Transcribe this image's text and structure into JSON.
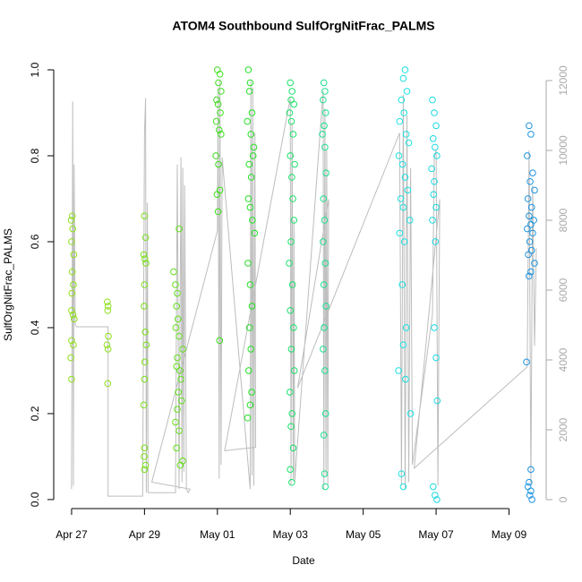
{
  "chart_data": {
    "type": "scatter",
    "title": "ATOM4 Southbound SulfOrgNitFrac_PALMS",
    "xlabel": "Date",
    "ylabel": "SulfOrgNitFrac_PALMS",
    "xlim": [
      -0.49,
      13.02
    ],
    "xticks": [
      {
        "value": 0,
        "label": "Apr 27"
      },
      {
        "value": 2,
        "label": "Apr 29"
      },
      {
        "value": 4,
        "label": "May 01"
      },
      {
        "value": 6,
        "label": "May 03"
      },
      {
        "value": 8,
        "label": "May 05"
      },
      {
        "value": 10,
        "label": "May 07"
      },
      {
        "value": 12,
        "label": "May 09"
      }
    ],
    "ylim": [
      -0.021,
      1.0375
    ],
    "yticks": [
      {
        "value": 0,
        "label": "0.0"
      },
      0.2,
      0.4,
      0.6,
      0.8,
      {
        "value": 1,
        "label": "1.0"
      }
    ],
    "y2lim": [
      -256,
      12769
    ],
    "y2ticks": [
      0,
      2000,
      4000,
      6000,
      8000,
      10000,
      12000
    ],
    "series": [
      {
        "color": "#8fe01c",
        "x": [
          0.02,
          -0.01,
          0.03,
          0.0,
          0.06,
          0.02,
          0.05,
          0.01,
          0.0,
          0.04,
          0.07,
          0.0,
          0.05,
          -0.02,
          0.0
        ],
        "values": [
          0.66,
          0.65,
          0.63,
          0.6,
          0.57,
          0.53,
          0.5,
          0.48,
          0.44,
          0.43,
          0.42,
          0.37,
          0.36,
          0.33,
          0.28
        ]
      },
      {
        "color": "#8ee01c",
        "x": [
          0.98,
          1.0,
          0.99,
          1.01,
          0.97,
          1.0,
          0.99
        ],
        "values": [
          0.46,
          0.45,
          0.44,
          0.38,
          0.36,
          0.35,
          0.27
        ]
      },
      {
        "color": "#7ae01c",
        "x": [
          2.0,
          2.03,
          1.98,
          2.01,
          2.04,
          2.0,
          1.99,
          2.02,
          2.05,
          2.01,
          2.0,
          1.98,
          2.0,
          1.99,
          2.03,
          2.0
        ],
        "values": [
          0.66,
          0.61,
          0.57,
          0.56,
          0.55,
          0.5,
          0.45,
          0.39,
          0.36,
          0.32,
          0.28,
          0.22,
          0.12,
          0.1,
          0.08,
          0.07
        ]
      },
      {
        "color": "#64e01c",
        "x": [
          2.95,
          2.8,
          2.85,
          2.9,
          2.88,
          2.92,
          2.86,
          2.95,
          3.05,
          2.9,
          2.88,
          2.97,
          3.0,
          2.93,
          3.02,
          2.9,
          2.85,
          2.95,
          2.88,
          3.05,
          2.98
        ],
        "values": [
          0.63,
          0.53,
          0.5,
          0.48,
          0.45,
          0.42,
          0.4,
          0.38,
          0.35,
          0.33,
          0.31,
          0.3,
          0.28,
          0.25,
          0.23,
          0.21,
          0.18,
          0.16,
          0.12,
          0.09,
          0.08
        ]
      },
      {
        "color": "#3ee01c",
        "x": [
          4.0,
          4.07,
          4.03,
          4.1,
          3.98,
          4.02,
          4.08,
          3.97,
          4.05,
          4.1,
          3.96,
          4.03,
          4.07,
          3.99,
          4.02,
          4.06
        ],
        "values": [
          1.0,
          0.99,
          0.97,
          0.95,
          0.93,
          0.92,
          0.9,
          0.88,
          0.86,
          0.85,
          0.8,
          0.78,
          0.72,
          0.71,
          0.67,
          0.37
        ]
      },
      {
        "color": "#24e024",
        "x": [
          4.85,
          4.9,
          4.88,
          4.95,
          4.82,
          4.92,
          5.0,
          4.98,
          4.87,
          4.93,
          4.85,
          4.9,
          4.96,
          5.02,
          4.84,
          4.9,
          4.95,
          4.88,
          4.92,
          4.86,
          4.94,
          4.9,
          4.83
        ],
        "values": [
          1.0,
          0.97,
          0.95,
          0.9,
          0.88,
          0.85,
          0.82,
          0.8,
          0.78,
          0.75,
          0.7,
          0.68,
          0.65,
          0.62,
          0.55,
          0.5,
          0.45,
          0.4,
          0.35,
          0.3,
          0.25,
          0.22,
          0.19
        ]
      },
      {
        "color": "#1ce06c",
        "x": [
          6.0,
          6.05,
          6.02,
          6.1,
          5.98,
          6.03,
          6.08,
          6.0,
          6.12,
          6.04,
          6.07,
          6.1,
          6.02,
          5.97,
          6.06,
          6.0,
          6.09,
          6.03,
          6.11,
          5.99,
          6.05,
          6.02,
          6.08,
          6.0,
          6.04
        ],
        "values": [
          0.97,
          0.95,
          0.93,
          0.92,
          0.9,
          0.88,
          0.85,
          0.8,
          0.78,
          0.75,
          0.7,
          0.65,
          0.6,
          0.55,
          0.5,
          0.44,
          0.4,
          0.35,
          0.3,
          0.25,
          0.2,
          0.17,
          0.12,
          0.07,
          0.04
        ]
      },
      {
        "color": "#1ce08e",
        "x": [
          6.92,
          6.95,
          6.9,
          6.97,
          6.93,
          6.88,
          6.95,
          6.98,
          6.91,
          6.94,
          6.9,
          6.96,
          6.92,
          6.98,
          6.93,
          6.9,
          6.95,
          6.97,
          6.92,
          6.94,
          6.96
        ],
        "values": [
          0.97,
          0.95,
          0.93,
          0.9,
          0.87,
          0.85,
          0.82,
          0.76,
          0.7,
          0.65,
          0.6,
          0.55,
          0.5,
          0.45,
          0.4,
          0.35,
          0.3,
          0.2,
          0.15,
          0.06,
          0.03
        ]
      },
      {
        "color": "#1ce0e0",
        "x": [
          9.15,
          9.1,
          9.2,
          9.05,
          9.12,
          9.0,
          9.18,
          9.25,
          8.98,
          9.08,
          9.15,
          9.22,
          9.03,
          9.1,
          9.28,
          9.0,
          9.13,
          9.07,
          9.18,
          9.1,
          8.97,
          9.16,
          9.3,
          9.05,
          9.1
        ],
        "values": [
          1.0,
          0.98,
          0.95,
          0.93,
          0.9,
          0.88,
          0.85,
          0.83,
          0.8,
          0.78,
          0.75,
          0.72,
          0.7,
          0.68,
          0.65,
          0.62,
          0.6,
          0.5,
          0.4,
          0.36,
          0.3,
          0.28,
          0.2,
          0.06,
          0.03
        ]
      },
      {
        "color": "#1cd8e0",
        "x": [
          9.9,
          9.95,
          10.0,
          9.92,
          9.97,
          10.02,
          9.88,
          9.95,
          9.93,
          10.0,
          9.9,
          9.98,
          9.95,
          10.0,
          10.03,
          9.92,
          9.97,
          10.02
        ],
        "values": [
          0.93,
          0.9,
          0.87,
          0.84,
          0.82,
          0.8,
          0.77,
          0.74,
          0.71,
          0.68,
          0.65,
          0.6,
          0.4,
          0.33,
          0.23,
          0.03,
          0.01,
          0.0
        ]
      },
      {
        "color": "#1c94e0",
        "x": [
          12.55,
          12.6,
          12.5,
          12.65,
          12.58,
          12.7,
          12.52,
          12.62,
          12.55,
          12.68,
          12.6,
          12.5,
          12.65,
          12.57,
          12.62,
          12.53,
          12.7,
          12.6,
          12.55,
          12.48,
          12.6,
          12.55,
          12.52,
          12.6,
          12.57,
          12.63
        ],
        "values": [
          0.87,
          0.85,
          0.8,
          0.76,
          0.74,
          0.72,
          0.7,
          0.68,
          0.66,
          0.65,
          0.64,
          0.63,
          0.62,
          0.6,
          0.58,
          0.57,
          0.55,
          0.53,
          0.52,
          0.32,
          0.07,
          0.04,
          0.03,
          0.02,
          0.01,
          0.0
        ]
      },
      {
        "type": "line",
        "axis": "y2",
        "color": "#bdbdbd",
        "x": [
          0.0,
          0.03,
          0.05,
          0.07,
          0.1,
          0.13,
          1.0,
          1.0,
          1.95,
          2.0,
          2.03,
          2.05,
          2.08,
          2.1,
          2.85,
          2.9,
          2.95,
          3.0,
          3.03,
          3.05,
          3.08,
          3.1,
          3.15,
          3.2,
          3.25,
          2.2,
          4.0,
          4.02,
          4.05,
          4.07,
          4.1,
          4.13,
          4.9,
          4.92,
          4.95,
          4.97,
          5.0,
          5.03,
          5.05,
          4.2,
          6.0,
          6.02,
          6.05,
          6.08,
          6.1,
          6.12,
          6.9,
          6.92,
          6.95,
          6.98,
          7.0,
          7.03,
          7.05,
          6.2,
          9.0,
          9.05,
          9.1,
          9.15,
          9.2,
          9.25,
          9.3,
          9.35,
          9.9,
          9.95,
          10.0,
          10.05,
          10.1,
          9.4,
          12.5,
          12.55,
          12.6,
          12.65,
          12.7,
          12.75
        ],
        "values": [
          300,
          11400,
          400,
          9600,
          5000,
          4950,
          4950,
          100,
          100,
          10500,
          11500,
          200,
          8500,
          200,
          200,
          9600,
          300,
          9800,
          500,
          9500,
          800,
          9000,
          300,
          200,
          300,
          500,
          7700,
          11800,
          600,
          12000,
          1000,
          9800,
          300,
          12000,
          700,
          11800,
          400,
          10500,
          1500,
          1400,
          11500,
          400,
          10800,
          600,
          8000,
          500,
          11700,
          300,
          11200,
          700,
          10000,
          400,
          8600,
          3200,
          10500,
          400,
          11600,
          300,
          11000,
          500,
          9500,
          1000,
          5300,
          9800,
          10000,
          400,
          8600,
          900,
          3800,
          10000,
          400,
          9000,
          4400,
          7200
        ]
      }
    ]
  }
}
